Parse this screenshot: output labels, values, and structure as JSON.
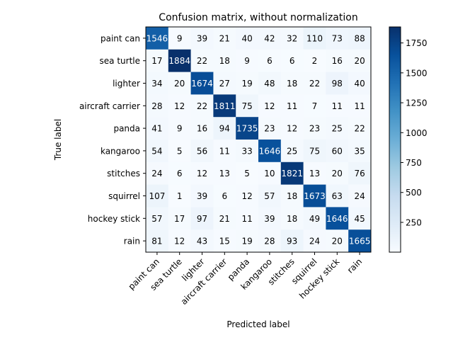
{
  "chart_data": {
    "type": "heatmap",
    "title": "Confusion matrix, without normalization",
    "xlabel": "Predicted label",
    "ylabel": "True label",
    "labels": [
      "paint can",
      "sea turtle",
      "lighter",
      "aircraft carrier",
      "panda",
      "kangaroo",
      "stitches",
      "squirrel",
      "hockey stick",
      "rain"
    ],
    "matrix": [
      [
        1546,
        9,
        39,
        21,
        40,
        42,
        32,
        110,
        73,
        88
      ],
      [
        17,
        1884,
        22,
        18,
        9,
        6,
        6,
        2,
        16,
        20
      ],
      [
        34,
        20,
        1674,
        27,
        19,
        48,
        18,
        22,
        98,
        40
      ],
      [
        28,
        12,
        22,
        1811,
        75,
        12,
        11,
        7,
        11,
        11
      ],
      [
        41,
        9,
        16,
        94,
        1735,
        23,
        12,
        23,
        25,
        22
      ],
      [
        54,
        5,
        56,
        11,
        33,
        1646,
        25,
        75,
        60,
        35
      ],
      [
        24,
        6,
        12,
        13,
        5,
        10,
        1821,
        13,
        20,
        76
      ],
      [
        107,
        1,
        39,
        6,
        12,
        57,
        18,
        1673,
        63,
        24
      ],
      [
        57,
        17,
        97,
        21,
        11,
        39,
        18,
        49,
        1646,
        45
      ],
      [
        81,
        12,
        43,
        15,
        19,
        28,
        93,
        24,
        20,
        1665
      ]
    ],
    "colormap": "Blues",
    "colorbar": {
      "vmin": 1,
      "vmax": 1884,
      "ticks": [
        250,
        500,
        750,
        1000,
        1250,
        1500,
        1750
      ]
    },
    "grid": false
  }
}
